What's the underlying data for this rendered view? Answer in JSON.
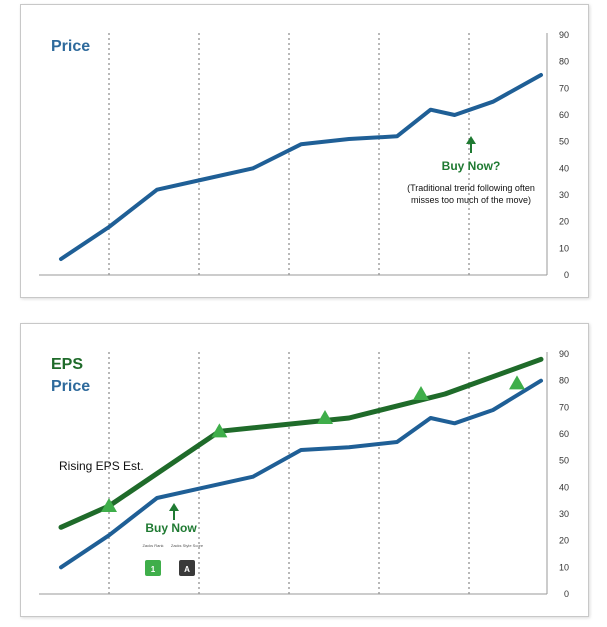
{
  "chart_data": [
    {
      "type": "line",
      "title": "Price",
      "ylim": [
        0,
        90
      ],
      "yticks": [
        0,
        10,
        20,
        30,
        40,
        50,
        60,
        70,
        80,
        90
      ],
      "grid": "vertical-dotted",
      "series": [
        {
          "name": "Price",
          "color": "#1f5f96",
          "x": [
            0,
            1,
            2,
            3,
            4,
            5,
            6,
            7,
            7.7,
            8.2,
            9,
            10
          ],
          "y": [
            6,
            18,
            32,
            36,
            40,
            49,
            51,
            52,
            62,
            60,
            65,
            75
          ]
        }
      ],
      "annotations": {
        "buy_now": "Buy Now?",
        "note_line1": "(Traditional trend following often",
        "note_line2": "misses too much of the move)"
      }
    },
    {
      "type": "line",
      "title": "EPS",
      "title2": "Price",
      "ylim": [
        0,
        90
      ],
      "yticks": [
        0,
        10,
        20,
        30,
        40,
        50,
        60,
        70,
        80,
        90
      ],
      "grid": "vertical-dotted",
      "series": [
        {
          "name": "EPS",
          "color": "#1f6b2a",
          "x": [
            0,
            1,
            3.3,
            6,
            8,
            10
          ],
          "y": [
            25,
            33,
            61,
            66,
            75,
            88
          ],
          "markers_x": [
            1,
            3.3,
            5.5,
            7.5,
            9.5
          ],
          "markers_y": [
            33,
            61,
            66,
            75,
            79
          ]
        },
        {
          "name": "Price",
          "color": "#1f5f96",
          "x": [
            0,
            1,
            2,
            3,
            4,
            5,
            6,
            7,
            7.7,
            8.2,
            9,
            10
          ],
          "y": [
            10,
            22,
            36,
            40,
            44,
            54,
            55,
            57,
            66,
            64,
            69,
            80
          ]
        }
      ],
      "annotations": {
        "rising": "Rising EPS Est.",
        "buy_now": "Buy Now",
        "rank_label": "Zacks Rank",
        "style_label": "Zacks Style Score",
        "rank_value": "1",
        "style_value": "A"
      }
    }
  ],
  "colors": {
    "price": "#1f5f96",
    "eps": "#1f6b2a",
    "marker": "#3fae4a",
    "arrow": "#1f7a32"
  }
}
